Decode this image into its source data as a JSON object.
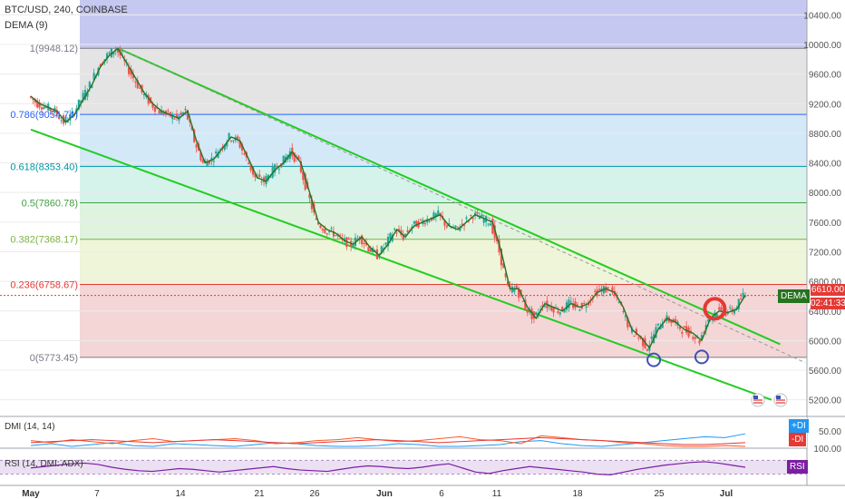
{
  "header": {
    "title": "BTC/USD, 240, COINBASE",
    "indicator": "DEMA (9)"
  },
  "price_tag": {
    "price": "6610.00",
    "countdown": "02:41:33",
    "dema_label": "DEMA"
  },
  "colors": {
    "up": "#26a69a",
    "down": "#ef5350",
    "dema": "#26731f",
    "channel": "#22cc22",
    "price_line": "#e53935",
    "fib_1": "#787b86",
    "fib_786": "#2962ff",
    "fib_618": "#0097a7",
    "fib_5": "#43a047",
    "fib_382": "#7cb342",
    "fib_236": "#e53935",
    "fib_0": "#787b86",
    "rsi": "#7b1fa2",
    "plus_di": "#2196f3",
    "minus_di": "#ff5722",
    "adx": "#e53935"
  },
  "chart_data": [
    {
      "type": "candlestick",
      "symbol": "BTC/USD",
      "interval": "240",
      "exchange": "COINBASE",
      "ylim": [
        5000,
        10600
      ],
      "y_ticks": [
        "10400.00",
        "10000.00",
        "9600.00",
        "9200.00",
        "8800.00",
        "8400.00",
        "8000.00",
        "7600.00",
        "7200.00",
        "6800.00",
        "6400.00",
        "6000.00",
        "5600.00",
        "5200.00"
      ],
      "x_ticks": [
        "May",
        "7",
        "14",
        "21",
        "26",
        "Jun",
        "6",
        "11",
        "18",
        "25",
        "Jul"
      ],
      "last_price": 6610.0,
      "fib_levels": [
        {
          "ratio": 1,
          "label": "1(9948.12)",
          "price": 9948.12
        },
        {
          "ratio": 0.786,
          "label": "0.786(9054.74)",
          "price": 9054.74
        },
        {
          "ratio": 0.618,
          "label": "0.618(8353.40)",
          "price": 8353.4
        },
        {
          "ratio": 0.5,
          "label": "0.5(7860.78)",
          "price": 7860.78
        },
        {
          "ratio": 0.382,
          "label": "0.382(7368.17)",
          "price": 7368.17
        },
        {
          "ratio": 0.236,
          "label": "0.236(6758.67)",
          "price": 6758.67
        },
        {
          "ratio": 0,
          "label": "0(5773.45)",
          "price": 5773.45
        }
      ],
      "price_path": [
        [
          0,
          9300
        ],
        [
          2,
          9200
        ],
        [
          4,
          9150
        ],
        [
          6,
          9100
        ],
        [
          8,
          8950
        ],
        [
          10,
          9050
        ],
        [
          12,
          9250
        ],
        [
          14,
          9450
        ],
        [
          16,
          9700
        ],
        [
          18,
          9850
        ],
        [
          20,
          9948
        ],
        [
          22,
          9750
        ],
        [
          24,
          9550
        ],
        [
          26,
          9350
        ],
        [
          28,
          9200
        ],
        [
          30,
          9100
        ],
        [
          32,
          9050
        ],
        [
          34,
          9000
        ],
        [
          36,
          9100
        ],
        [
          38,
          8700
        ],
        [
          40,
          8400
        ],
        [
          42,
          8450
        ],
        [
          44,
          8600
        ],
        [
          46,
          8750
        ],
        [
          48,
          8700
        ],
        [
          50,
          8450
        ],
        [
          52,
          8200
        ],
        [
          54,
          8150
        ],
        [
          56,
          8300
        ],
        [
          58,
          8400
        ],
        [
          60,
          8550
        ],
        [
          62,
          8400
        ],
        [
          64,
          8000
        ],
        [
          66,
          7600
        ],
        [
          68,
          7500
        ],
        [
          70,
          7450
        ],
        [
          72,
          7350
        ],
        [
          74,
          7300
        ],
        [
          76,
          7400
        ],
        [
          78,
          7250
        ],
        [
          80,
          7150
        ],
        [
          82,
          7300
        ],
        [
          84,
          7500
        ],
        [
          86,
          7400
        ],
        [
          88,
          7550
        ],
        [
          90,
          7600
        ],
        [
          92,
          7650
        ],
        [
          94,
          7700
        ],
        [
          96,
          7550
        ],
        [
          98,
          7500
        ],
        [
          100,
          7600
        ],
        [
          102,
          7700
        ],
        [
          104,
          7650
        ],
        [
          106,
          7600
        ],
        [
          108,
          7200
        ],
        [
          110,
          6700
        ],
        [
          112,
          6700
        ],
        [
          114,
          6450
        ],
        [
          116,
          6300
        ],
        [
          118,
          6500
        ],
        [
          120,
          6450
        ],
        [
          122,
          6400
        ],
        [
          124,
          6500
        ],
        [
          126,
          6450
        ],
        [
          128,
          6500
        ],
        [
          130,
          6650
        ],
        [
          132,
          6700
        ],
        [
          134,
          6650
        ],
        [
          136,
          6450
        ],
        [
          138,
          6150
        ],
        [
          140,
          6050
        ],
        [
          142,
          5900
        ],
        [
          144,
          6150
        ],
        [
          146,
          6300
        ],
        [
          148,
          6250
        ],
        [
          150,
          6150
        ],
        [
          152,
          6100
        ],
        [
          154,
          6000
        ],
        [
          156,
          6300
        ],
        [
          158,
          6400
        ],
        [
          160,
          6380
        ],
        [
          162,
          6420
        ],
        [
          164,
          6610
        ]
      ],
      "channel": {
        "upper": [
          [
            20,
            9948
          ],
          [
            172,
            5950
          ]
        ],
        "lower": [
          [
            0,
            8850
          ],
          [
            170,
            5200
          ]
        ],
        "dashed": [
          [
            20,
            9948
          ],
          [
            172,
            5800
          ]
        ]
      },
      "annotations": [
        {
          "shape": "circle",
          "color": "#e53935",
          "x": 157,
          "price": 6430
        },
        {
          "shape": "circle",
          "color": "#3f51b5",
          "x": 143,
          "price": 5740
        },
        {
          "shape": "circle",
          "color": "#3f51b5",
          "x": 154,
          "price": 5780
        }
      ]
    },
    {
      "type": "line",
      "title": "DMI (14, 14)",
      "ylim": [
        0,
        100
      ],
      "y_ticks": [
        "50.00"
      ],
      "series": [
        {
          "name": "+DI",
          "color": "#2196f3",
          "values": [
            20,
            24,
            18,
            22,
            26,
            20,
            18,
            24,
            22,
            20,
            18,
            22,
            26,
            24,
            20,
            18,
            16,
            20,
            24,
            22,
            18,
            16,
            20,
            22,
            28,
            30,
            24,
            20,
            18,
            22,
            26,
            30,
            34,
            38,
            36,
            44
          ]
        },
        {
          "name": "-DI",
          "color": "#ff5722",
          "values": [
            30,
            26,
            32,
            28,
            24,
            30,
            34,
            28,
            30,
            32,
            34,
            30,
            24,
            26,
            30,
            32,
            36,
            32,
            28,
            30,
            34,
            38,
            32,
            30,
            24,
            40,
            36,
            32,
            30,
            26,
            24,
            20,
            18,
            16,
            20,
            14
          ]
        },
        {
          "name": "ADX",
          "color": "#e53935",
          "values": [
            26,
            28,
            30,
            32,
            30,
            28,
            26,
            28,
            30,
            32,
            30,
            28,
            26,
            24,
            26,
            28,
            30,
            32,
            30,
            28,
            26,
            28,
            30,
            32,
            34,
            36,
            34,
            32,
            30,
            28,
            26,
            24,
            22,
            22,
            24,
            26
          ]
        }
      ]
    },
    {
      "type": "line",
      "title": "RSI (14, DMI: ADX)",
      "ylim": [
        0,
        100
      ],
      "y_ticks": [
        "100.00"
      ],
      "band": [
        30,
        70
      ],
      "series": [
        {
          "name": "RSI",
          "color": "#7b1fa2",
          "values": [
            48,
            52,
            56,
            60,
            62,
            58,
            50,
            44,
            40,
            38,
            42,
            46,
            44,
            40,
            36,
            40,
            44,
            48,
            52,
            46,
            42,
            40,
            38,
            44,
            50,
            54,
            52,
            48,
            46,
            50,
            56,
            60,
            48,
            36,
            32,
            40,
            46,
            52,
            48,
            44,
            40,
            36,
            30,
            28,
            36,
            44,
            50,
            56,
            60,
            64,
            66,
            62,
            56,
            50
          ]
        }
      ]
    }
  ],
  "panes": {
    "dmi_title": "DMI (14, 14)",
    "dmi_plus": "+DI",
    "dmi_minus": "-DI",
    "rsi_title": "RSI (14, DMI: ADX)",
    "rsi_badge": "RSI"
  }
}
